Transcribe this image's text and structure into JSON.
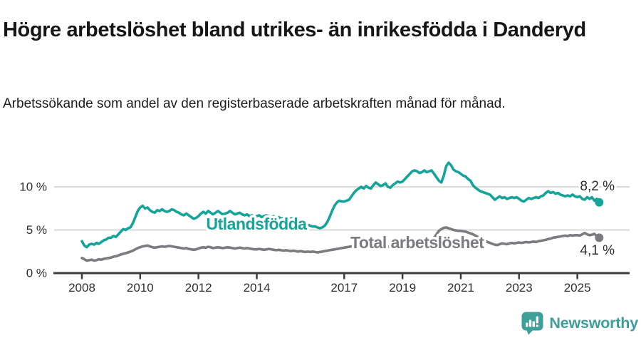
{
  "header": {
    "title": "Högre arbetslöshet bland utrikes- än inrikesfödda i Danderyd",
    "subtitle": "Arbetssökande som andel av den registerbaserade arbetskraften månad för månad."
  },
  "footer": {
    "brand": "Newsworthy"
  },
  "colors": {
    "foreign_born": "#14a49a",
    "total": "#7b7b80",
    "grid": "#dadada",
    "axis": "#3d3d3d",
    "tick_text": "#2f2f2f",
    "value_text": "#2b2b2b",
    "logo_teal": "#3d9f98"
  },
  "chart_data": {
    "type": "line",
    "title": "Högre arbetslöshet bland utrikes- än inrikesfödda i Danderyd",
    "subtitle": "Arbetssökande som andel av den registerbaserade arbetskraften månad för månad.",
    "x_unit": "month",
    "x_start": "2008-01",
    "x_end": "2025-10",
    "x_tick_labels": [
      "2008",
      "2010",
      "2012",
      "2014",
      "2017",
      "2019",
      "2021",
      "2023",
      "2025"
    ],
    "y_axis": {
      "unit": "%",
      "tick_values": [
        0,
        5,
        10
      ],
      "tick_labels": [
        "0 %",
        "5 %",
        "10 %"
      ],
      "ylim": [
        0,
        13.5
      ]
    },
    "grid": "horizontal",
    "legend_position": "inline-labels",
    "series": [
      {
        "name": "Utlandsfödda",
        "color": "#14a49a",
        "end_label": "8,2 %",
        "last_value": 8.2,
        "values": [
          3.7,
          3.2,
          3.0,
          3.3,
          3.4,
          3.3,
          3.5,
          3.4,
          3.6,
          3.8,
          3.9,
          4.1,
          4.1,
          4.3,
          4.2,
          4.5,
          4.8,
          5.1,
          5.0,
          5.2,
          5.3,
          5.8,
          6.5,
          7.2,
          7.6,
          7.8,
          7.5,
          7.6,
          7.3,
          7.1,
          7.0,
          7.3,
          7.2,
          7.4,
          7.2,
          7.1,
          7.2,
          7.4,
          7.3,
          7.1,
          7.0,
          6.8,
          6.7,
          6.9,
          6.7,
          6.5,
          6.3,
          6.4,
          6.6,
          6.9,
          7.1,
          6.9,
          7.2,
          7.0,
          6.8,
          7.0,
          7.2,
          7.0,
          6.8,
          6.9,
          7.0,
          7.2,
          7.0,
          6.8,
          6.9,
          7.0,
          6.8,
          6.7,
          6.8,
          6.6,
          6.7,
          6.5,
          6.6,
          6.7,
          6.5,
          6.6,
          6.7,
          6.6,
          6.5,
          6.6,
          6.4,
          6.5,
          6.3,
          6.4,
          6.5,
          6.4,
          6.3,
          6.4,
          6.2,
          6.1,
          6.0,
          5.9,
          5.7,
          5.6,
          5.5,
          5.4,
          5.4,
          5.3,
          5.2,
          5.3,
          5.5,
          5.9,
          6.5,
          7.2,
          7.8,
          8.2,
          8.4,
          8.3,
          8.3,
          8.4,
          8.5,
          8.9,
          9.3,
          9.6,
          9.8,
          10.0,
          9.8,
          10.1,
          9.9,
          9.8,
          10.2,
          10.5,
          10.3,
          10.1,
          10.2,
          10.4,
          10.0,
          9.9,
          10.2,
          10.4,
          10.6,
          10.5,
          10.6,
          10.9,
          11.2,
          11.5,
          11.8,
          11.9,
          11.8,
          11.6,
          11.7,
          11.9,
          11.7,
          11.8,
          11.9,
          11.5,
          11.1,
          10.7,
          10.5,
          11.3,
          12.4,
          12.8,
          12.5,
          12.0,
          11.8,
          11.7,
          11.5,
          11.3,
          11.2,
          10.9,
          10.7,
          10.2,
          9.9,
          9.7,
          9.5,
          9.4,
          9.3,
          9.2,
          9.1,
          8.8,
          8.5,
          8.7,
          8.9,
          8.7,
          8.8,
          8.6,
          8.7,
          8.8,
          8.7,
          8.8,
          8.6,
          8.4,
          8.3,
          8.5,
          8.7,
          8.6,
          8.7,
          8.8,
          8.7,
          8.9,
          9.0,
          9.3,
          9.5,
          9.3,
          9.4,
          9.2,
          9.3,
          9.1,
          9.0,
          8.9,
          9.0,
          8.9,
          9.1,
          8.9,
          8.8,
          8.9,
          8.6,
          8.5,
          8.8,
          8.6,
          8.8,
          8.4,
          8.6,
          8.2
        ]
      },
      {
        "name": "Total arbetslöshet",
        "color": "#7b7b80",
        "end_label": "4,1 %",
        "last_value": 4.1,
        "values": [
          1.75,
          1.6,
          1.45,
          1.5,
          1.55,
          1.45,
          1.5,
          1.6,
          1.55,
          1.65,
          1.7,
          1.75,
          1.8,
          1.9,
          1.95,
          2.05,
          2.15,
          2.25,
          2.3,
          2.4,
          2.5,
          2.6,
          2.75,
          2.9,
          3.0,
          3.1,
          3.15,
          3.2,
          3.1,
          3.0,
          2.95,
          3.0,
          3.05,
          3.1,
          3.05,
          3.1,
          3.15,
          3.1,
          3.05,
          3.0,
          2.95,
          2.9,
          2.85,
          2.9,
          2.8,
          2.75,
          2.7,
          2.75,
          2.85,
          2.95,
          3.0,
          2.95,
          3.05,
          3.0,
          2.9,
          2.95,
          3.0,
          2.95,
          2.9,
          2.95,
          3.0,
          2.95,
          2.9,
          2.85,
          2.9,
          2.95,
          2.9,
          2.85,
          2.9,
          2.85,
          2.8,
          2.75,
          2.75,
          2.8,
          2.75,
          2.7,
          2.75,
          2.8,
          2.75,
          2.7,
          2.65,
          2.7,
          2.65,
          2.6,
          2.65,
          2.6,
          2.55,
          2.6,
          2.55,
          2.5,
          2.55,
          2.5,
          2.45,
          2.5,
          2.45,
          2.5,
          2.45,
          2.4,
          2.45,
          2.5,
          2.55,
          2.6,
          2.65,
          2.7,
          2.75,
          2.8,
          2.85,
          2.9,
          2.95,
          3.0,
          3.05,
          3.1,
          3.05,
          3.1,
          3.15,
          3.1,
          3.05,
          3.1,
          3.15,
          3.2,
          3.15,
          3.1,
          3.15,
          3.2,
          3.15,
          3.1,
          3.05,
          3.1,
          3.15,
          3.1,
          3.15,
          3.2,
          3.25,
          3.2,
          3.25,
          3.3,
          3.35,
          3.3,
          3.35,
          3.4,
          3.35,
          3.4,
          3.5,
          3.6,
          3.8,
          4.1,
          4.5,
          4.9,
          5.1,
          5.25,
          5.3,
          5.2,
          5.1,
          5.0,
          4.95,
          4.9,
          4.9,
          4.85,
          4.8,
          4.7,
          4.6,
          4.5,
          4.35,
          4.2,
          4.05,
          3.9,
          3.75,
          3.6,
          3.5,
          3.4,
          3.3,
          3.25,
          3.35,
          3.45,
          3.4,
          3.35,
          3.45,
          3.5,
          3.45,
          3.5,
          3.55,
          3.5,
          3.55,
          3.6,
          3.55,
          3.6,
          3.65,
          3.6,
          3.7,
          3.75,
          3.8,
          3.85,
          3.95,
          4.0,
          4.1,
          4.15,
          4.2,
          4.25,
          4.3,
          4.35,
          4.3,
          4.4,
          4.35,
          4.4,
          4.4,
          4.35,
          4.5,
          4.65,
          4.5,
          4.4,
          4.45,
          4.55,
          4.3,
          4.1
        ]
      }
    ]
  }
}
